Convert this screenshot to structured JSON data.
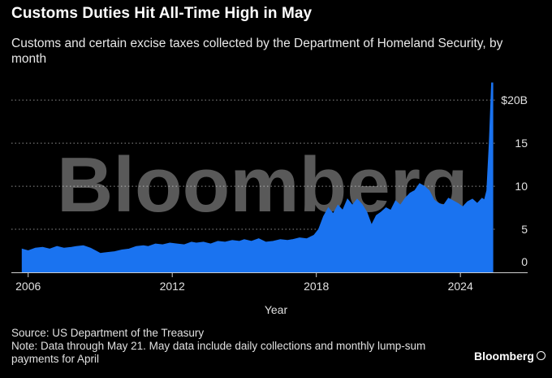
{
  "title": "Customs Duties Hit All-Time High in May",
  "subtitle": "Customs and certain excise taxes collected by the Department of Homeland Security, by month",
  "watermark": "Bloomberg",
  "source": "Source: US Department of the Treasury",
  "note": "Note: Data through May 21. May data include daily collections and monthly lump-sum payments for April",
  "brand": "Bloomberg",
  "colors": {
    "background": "#000000",
    "area": "#1a73f0",
    "grid": "#ffffff"
  },
  "chart_data": {
    "type": "area",
    "title": "Customs Duties Hit All-Time High in May",
    "xlabel": "Year",
    "ylabel": "",
    "xlim": [
      2005.3,
      2026.8
    ],
    "ylim": [
      0,
      22
    ],
    "x_ticks": [
      {
        "value": 2006,
        "label": "2006"
      },
      {
        "value": 2012,
        "label": "2012"
      },
      {
        "value": 2018,
        "label": "2018"
      },
      {
        "value": 2024,
        "label": "2024"
      }
    ],
    "y_ticks": [
      {
        "value": 0,
        "label": "0"
      },
      {
        "value": 5,
        "label": "5"
      },
      {
        "value": 10,
        "label": "10"
      },
      {
        "value": 15,
        "label": "15"
      },
      {
        "value": 20,
        "label": "$20B"
      }
    ],
    "grid": "horizontal dotted",
    "y_axis_side": "right",
    "series": [
      {
        "name": "",
        "color": "#1a73f0",
        "x": [
          2005.75,
          2006.0,
          2006.3,
          2006.6,
          2006.9,
          2007.2,
          2007.5,
          2007.8,
          2008.0,
          2008.3,
          2008.6,
          2008.8,
          2009.0,
          2009.3,
          2009.6,
          2009.9,
          2010.2,
          2010.5,
          2010.8,
          2011.0,
          2011.3,
          2011.6,
          2011.9,
          2012.2,
          2012.5,
          2012.8,
          2013.0,
          2013.3,
          2013.6,
          2013.9,
          2014.2,
          2014.5,
          2014.8,
          2015.0,
          2015.3,
          2015.6,
          2015.9,
          2016.2,
          2016.5,
          2016.8,
          2017.0,
          2017.3,
          2017.6,
          2017.9,
          2018.1,
          2018.3,
          2018.5,
          2018.7,
          2018.9,
          2019.1,
          2019.3,
          2019.5,
          2019.7,
          2019.9,
          2020.1,
          2020.3,
          2020.5,
          2020.7,
          2020.9,
          2021.1,
          2021.3,
          2021.5,
          2021.7,
          2021.9,
          2022.1,
          2022.3,
          2022.5,
          2022.7,
          2022.9,
          2023.1,
          2023.3,
          2023.5,
          2023.7,
          2023.9,
          2024.1,
          2024.3,
          2024.5,
          2024.7,
          2024.9,
          2025.0,
          2025.1,
          2025.2,
          2025.3,
          2025.35
        ],
        "values": [
          2.7,
          2.5,
          2.8,
          2.9,
          2.7,
          3.0,
          2.8,
          2.9,
          3.0,
          3.1,
          2.8,
          2.5,
          2.2,
          2.3,
          2.4,
          2.6,
          2.7,
          3.0,
          3.1,
          3.0,
          3.3,
          3.2,
          3.4,
          3.3,
          3.2,
          3.5,
          3.4,
          3.5,
          3.3,
          3.6,
          3.5,
          3.7,
          3.6,
          3.8,
          3.6,
          3.9,
          3.5,
          3.6,
          3.8,
          3.7,
          3.8,
          4.0,
          3.9,
          4.3,
          5.0,
          6.5,
          7.5,
          6.8,
          7.8,
          7.2,
          8.5,
          7.8,
          8.5,
          7.9,
          7.0,
          5.5,
          6.6,
          7.0,
          7.5,
          7.2,
          8.3,
          7.8,
          8.6,
          9.2,
          9.5,
          10.3,
          10.0,
          9.5,
          8.4,
          8.0,
          7.8,
          8.6,
          8.3,
          8.0,
          7.6,
          8.2,
          8.5,
          8.0,
          8.6,
          8.4,
          9.5,
          15.0,
          22.0,
          22.0
        ]
      }
    ]
  }
}
